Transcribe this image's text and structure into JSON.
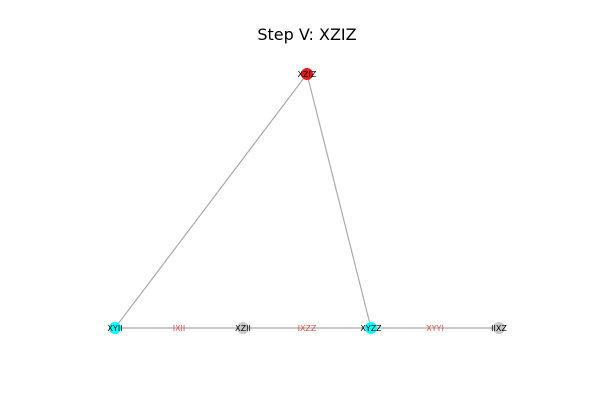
{
  "title": "Step V: XZIZ",
  "colors": {
    "active": "#e8191a",
    "highlight": "#00ffff",
    "inactive": "#c8c8c8",
    "edge": "#aaaaaa",
    "edge_label": "#e05050"
  },
  "nodes": [
    {
      "id": "XZIZ",
      "label": "XZIZ",
      "state": "active"
    },
    {
      "id": "XYII",
      "label": "XYII",
      "state": "highlight"
    },
    {
      "id": "XZII",
      "label": "XZII",
      "state": "inactive"
    },
    {
      "id": "XYZZ",
      "label": "XYZZ",
      "state": "highlight"
    },
    {
      "id": "IIXZ",
      "label": "IIXZ",
      "state": "inactive"
    }
  ],
  "edges": [
    {
      "source": "XZIZ",
      "target": "XYII",
      "label": ""
    },
    {
      "source": "XZIZ",
      "target": "XYZZ",
      "label": ""
    },
    {
      "source": "XYII",
      "target": "XZII",
      "label": "IXII"
    },
    {
      "source": "XZII",
      "target": "XYZZ",
      "label": "IXZZ"
    },
    {
      "source": "XYZZ",
      "target": "IIXZ",
      "label": "XYYI"
    }
  ]
}
